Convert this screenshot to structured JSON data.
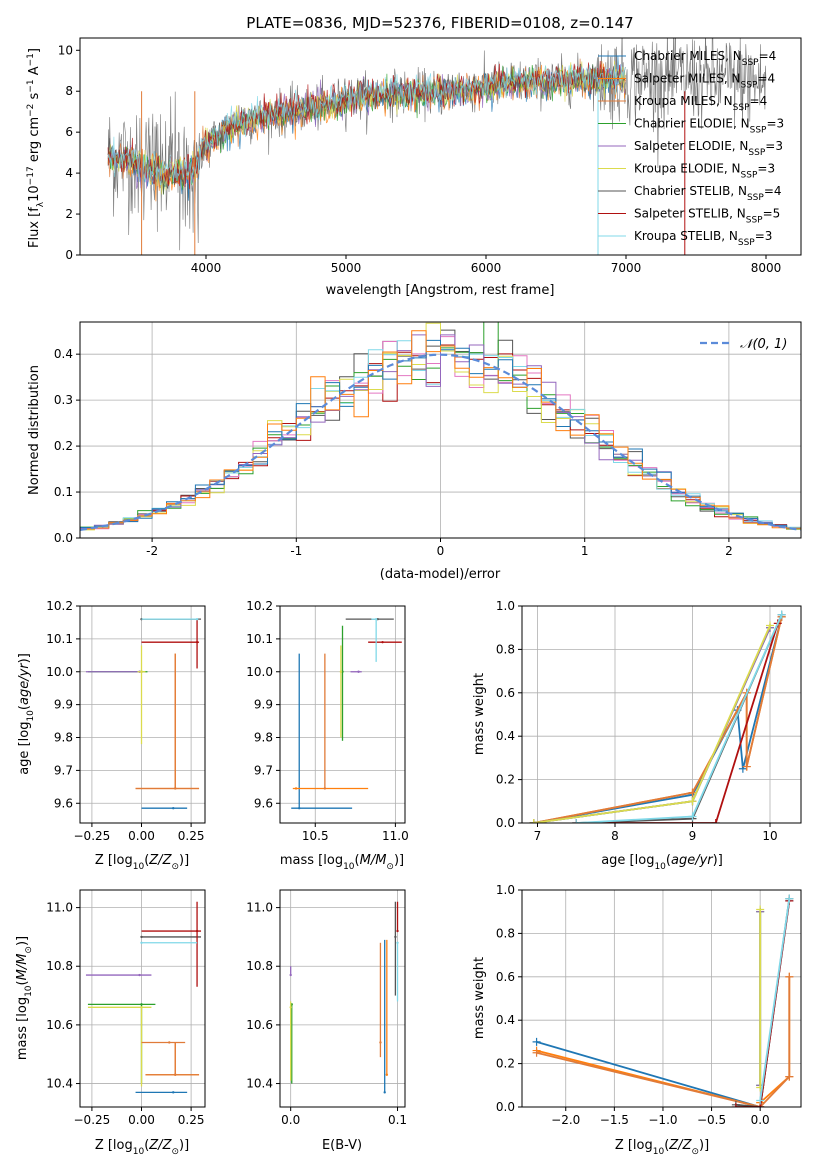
{
  "figure": {
    "title": "PLATE=0836, MJD=52376, FIBERID=0108, z=0.147"
  },
  "colors": {
    "Chabrier MILES": "#1f77b4",
    "Salpeter MILES": "#ff7f0e",
    "Kroupa MILES": "#e07b39",
    "Chabrier ELODIE": "#2ca02c",
    "Salpeter ELODIE": "#9467bd",
    "Kroupa ELODIE": "#dbdb4d",
    "Chabrier STELIB": "#555555",
    "Salpeter STELIB": "#b01010",
    "Kroupa STELIB": "#80d8e8"
  },
  "chart_data": [
    {
      "type": "line",
      "title": "PLATE=0836, MJD=52376, FIBERID=0108, z=0.147",
      "xlabel": "wavelength [Angstrom, rest frame]",
      "ylabel": "Flux [f_λ10^-17 erg cm^-2 s^-1 A^-1]",
      "xlim": [
        3100,
        8250
      ],
      "ylim": [
        0,
        10.6
      ],
      "xticks": [
        4000,
        5000,
        6000,
        7000,
        8000
      ],
      "yticks": [
        0,
        2,
        4,
        6,
        8,
        10
      ],
      "legend": [
        "Chabrier MILES, N_SSP=4",
        "Salpeter MILES, N_SSP=4",
        "Kroupa MILES, N_SSP=4",
        "Chabrier ELODIE, N_SSP=3",
        "Salpeter ELODIE, N_SSP=3",
        "Kroupa ELODIE, N_SSP=3",
        "Chabrier STELIB, N_SSP=4",
        "Salpeter STELIB, N_SSP=5",
        "Kroupa STELIB, N_SSP=3"
      ],
      "legend_position": "top-right",
      "data_continuum": {
        "x": [
          3300,
          3500,
          3700,
          3900,
          4000,
          4200,
          4500,
          4800,
          5000,
          5300,
          5600,
          5900,
          6200,
          6500,
          6800,
          7000,
          7300,
          7600,
          7900,
          8000
        ],
        "y": [
          4.8,
          4.6,
          4.2,
          4.4,
          5.4,
          6.4,
          6.9,
          7.2,
          7.6,
          7.9,
          7.9,
          8.1,
          8.4,
          8.5,
          8.6,
          8.6,
          8.7,
          8.6,
          8.5,
          8.3
        ]
      },
      "model_range": [
        3300,
        7000
      ]
    },
    {
      "type": "line",
      "xlabel": "(data-model)/error",
      "ylabel": "Normed distribution",
      "xlim": [
        -2.5,
        2.5
      ],
      "ylim": [
        0,
        0.47
      ],
      "xticks": [
        -2,
        -1,
        0,
        1,
        2
      ],
      "yticks": [
        0.0,
        0.1,
        0.2,
        0.3,
        0.4
      ],
      "grid": true,
      "legend": [
        "𝒩(0, 1)"
      ],
      "legend_position": "top-right",
      "bin_width": 0.1
    },
    {
      "type": "scatter",
      "xlabel": "Z [log10(Z/Z⊙)]",
      "ylabel": "age  [log10(age/yr)]",
      "xlim": [
        -0.31,
        0.32
      ],
      "ylim": [
        9.54,
        10.2
      ],
      "xticks": [
        -0.25,
        0.0,
        0.25
      ],
      "xticklabels": [
        "−0.25",
        "0.00",
        "0.25"
      ],
      "yticks": [
        9.6,
        9.7,
        9.8,
        9.9,
        10.0,
        10.1,
        10.2
      ],
      "grid": true,
      "points": [
        {
          "model": "Chabrier MILES",
          "x": 0.16,
          "xerr": [
            0.16,
            0.07
          ],
          "y": 9.585,
          "yerr": [
            0.0,
            0.0
          ]
        },
        {
          "model": "Salpeter MILES",
          "x": 0.17,
          "xerr": [
            0.2,
            0.12
          ],
          "y": 9.645,
          "yerr": [
            0.0,
            0.41
          ]
        },
        {
          "model": "Kroupa MILES",
          "x": 0.17,
          "xerr": [
            0.2,
            0.12
          ],
          "y": 9.645,
          "yerr": [
            0.0,
            0.41
          ]
        },
        {
          "model": "Chabrier ELODIE",
          "x": 0.0,
          "xerr": [
            0.27,
            0.03
          ],
          "y": 10.0,
          "yerr": [
            0.0,
            0.0
          ]
        },
        {
          "model": "Salpeter ELODIE",
          "x": -0.01,
          "xerr": [
            0.27,
            0.0
          ],
          "y": 10.0,
          "yerr": [
            0.0,
            0.0
          ]
        },
        {
          "model": "Kroupa ELODIE",
          "x": 0.0,
          "xerr": [
            0.02,
            0.02
          ],
          "y": 10.0,
          "yerr": [
            0.22,
            0.08
          ]
        },
        {
          "model": "Chabrier STELIB",
          "x": 0.0,
          "xerr": [
            0.0,
            0.3
          ],
          "y": 10.16,
          "yerr": [
            0.0,
            0.0
          ]
        },
        {
          "model": "Salpeter STELIB",
          "x": 0.28,
          "xerr": [
            0.28,
            0.01
          ],
          "y": 10.09,
          "yerr": [
            0.08,
            0.07
          ]
        },
        {
          "model": "Kroupa STELIB",
          "x": 0.28,
          "xerr": [
            0.28,
            0.0
          ],
          "y": 10.16,
          "yerr": [
            0.0,
            0.0
          ]
        }
      ]
    },
    {
      "type": "scatter",
      "xlabel": "mass [log10(M/M⊙)]",
      "xlim": [
        10.28,
        11.06
      ],
      "ylim": [
        9.54,
        10.2
      ],
      "xticks": [
        10.5,
        11.0
      ],
      "xticklabels": [
        "10.5",
        "11.0"
      ],
      "yticks": [
        9.6,
        9.7,
        9.8,
        9.9,
        10.0,
        10.1,
        10.2
      ],
      "grid": true,
      "points": [
        {
          "model": "Chabrier MILES",
          "x": 10.4,
          "xerr": [
            0.05,
            0.33
          ],
          "y": 9.585,
          "yerr": [
            0.0,
            0.47
          ]
        },
        {
          "model": "Salpeter MILES",
          "x": 10.38,
          "xerr": [
            0.02,
            0.45
          ],
          "y": 9.645,
          "yerr": [
            0.0,
            0.0
          ]
        },
        {
          "model": "Kroupa MILES",
          "x": 10.56,
          "xerr": [
            0.0,
            0.0
          ],
          "y": 9.645,
          "yerr": [
            0.0,
            0.41
          ]
        },
        {
          "model": "Chabrier ELODIE",
          "x": 10.67,
          "xerr": [
            0.0,
            0.0
          ],
          "y": 10.0,
          "yerr": [
            0.21,
            0.14
          ]
        },
        {
          "model": "Salpeter ELODIE",
          "x": 10.77,
          "xerr": [
            0.05,
            0.02
          ],
          "y": 10.0,
          "yerr": [
            0.0,
            0.0
          ]
        },
        {
          "model": "Kroupa ELODIE",
          "x": 10.66,
          "xerr": [
            0.0,
            0.0
          ],
          "y": 10.0,
          "yerr": [
            0.2,
            0.08
          ]
        },
        {
          "model": "Chabrier STELIB",
          "x": 10.89,
          "xerr": [
            0.2,
            0.1
          ],
          "y": 10.16,
          "yerr": [
            0.0,
            0.0
          ]
        },
        {
          "model": "Salpeter STELIB",
          "x": 10.92,
          "xerr": [
            0.09,
            0.12
          ],
          "y": 10.09,
          "yerr": [
            0.0,
            0.0
          ]
        },
        {
          "model": "Kroupa STELIB",
          "x": 10.88,
          "xerr": [
            0.03,
            0.0
          ],
          "y": 10.16,
          "yerr": [
            0.13,
            0.0
          ]
        }
      ]
    },
    {
      "type": "line",
      "xlabel": "age  [log10(age/yr)]",
      "ylabel": "mass weight",
      "xlim": [
        6.8,
        10.4
      ],
      "ylim": [
        0,
        1
      ],
      "xticks": [
        7,
        8,
        9,
        10
      ],
      "yticks": [
        0.0,
        0.2,
        0.4,
        0.6,
        0.8,
        1.0
      ],
      "grid": true,
      "series": [
        {
          "model": "Chabrier MILES",
          "x": [
            6.95,
            9.0,
            9.58,
            9.65,
            10.15
          ],
          "y": [
            0.0,
            0.13,
            0.52,
            0.25,
            0.95
          ]
        },
        {
          "model": "Salpeter MILES",
          "x": [
            6.95,
            9.0,
            9.7,
            9.7,
            10.15
          ],
          "y": [
            0.0,
            0.14,
            0.6,
            0.26,
            0.95
          ]
        },
        {
          "model": "Kroupa MILES",
          "x": [
            6.95,
            9.0,
            9.7,
            9.7,
            10.15
          ],
          "y": [
            0.0,
            0.14,
            0.6,
            0.26,
            0.95
          ]
        },
        {
          "model": "Chabrier ELODIE",
          "x": [
            6.95,
            9.0,
            10.0
          ],
          "y": [
            0.0,
            0.1,
            0.9
          ]
        },
        {
          "model": "Salpeter ELODIE",
          "x": [
            6.95,
            9.0,
            10.0
          ],
          "y": [
            0.0,
            0.1,
            0.9
          ]
        },
        {
          "model": "Kroupa ELODIE",
          "x": [
            6.95,
            9.0,
            10.0
          ],
          "y": [
            0.0,
            0.1,
            0.91
          ]
        },
        {
          "model": "Chabrier STELIB",
          "x": [
            7.5,
            9.0,
            10.15
          ],
          "y": [
            0.0,
            0.02,
            0.96
          ]
        },
        {
          "model": "Salpeter STELIB",
          "x": [
            7.5,
            9.3,
            10.1
          ],
          "y": [
            0.0,
            0.0,
            0.92
          ]
        },
        {
          "model": "Kroupa STELIB",
          "x": [
            7.5,
            9.0,
            10.15
          ],
          "y": [
            0.0,
            0.03,
            0.96
          ]
        }
      ]
    },
    {
      "type": "scatter",
      "xlabel": "Z [log10(Z/Z⊙)]",
      "ylabel": "mass [log10(M/M⊙)]",
      "xlim": [
        -0.31,
        0.32
      ],
      "ylim": [
        10.32,
        11.06
      ],
      "xticks": [
        -0.25,
        0.0,
        0.25
      ],
      "xticklabels": [
        "−0.25",
        "0.00",
        "0.25"
      ],
      "yticks": [
        10.4,
        10.6,
        10.8,
        11.0
      ],
      "grid": true,
      "points": [
        {
          "model": "Chabrier MILES",
          "x": 0.16,
          "xerr": [
            0.19,
            0.07
          ],
          "y": 10.37,
          "yerr": [
            0.0,
            0.0
          ]
        },
        {
          "model": "Salpeter MILES",
          "x": 0.17,
          "xerr": [
            0.15,
            0.12
          ],
          "y": 10.43,
          "yerr": [
            0.0,
            0.11
          ]
        },
        {
          "model": "Kroupa MILES",
          "x": 0.17,
          "xerr": [
            0.15,
            0.12
          ],
          "y": 10.43,
          "yerr": [
            0.0,
            0.11
          ]
        },
        {
          "model": "Chabrier ELODIE",
          "x": 0.0,
          "xerr": [
            0.27,
            0.07
          ],
          "y": 10.67,
          "yerr": [
            0.27,
            0.0
          ]
        },
        {
          "model": "Salpeter ELODIE",
          "x": -0.01,
          "xerr": [
            0.27,
            0.06
          ],
          "y": 10.77,
          "yerr": [
            0.0,
            0.0
          ]
        },
        {
          "model": "Kroupa ELODIE",
          "x": 0.0,
          "xerr": [
            0.27,
            0.05
          ],
          "y": 10.66,
          "yerr": [
            0.27,
            0.0
          ]
        },
        {
          "model": "Chabrier STELIB",
          "x": 0.0,
          "xerr": [
            0.0,
            0.3
          ],
          "y": 10.9,
          "yerr": [
            0.0,
            0.0
          ]
        },
        {
          "model": "Salpeter STELIB",
          "x": 0.28,
          "xerr": [
            0.28,
            0.02
          ],
          "y": 10.92,
          "yerr": [
            0.19,
            0.1
          ]
        },
        {
          "model": "Kroupa STELIB",
          "x": 0.0,
          "xerr": [
            0.0,
            0.28
          ],
          "y": 10.88,
          "yerr": [
            0.0,
            0.0
          ]
        },
        {
          "model": "Kroupa MILES",
          "x": 0.14,
          "xerr": [
            0.14,
            0.08
          ],
          "y": 10.54,
          "yerr": [
            0.0,
            0.0
          ]
        }
      ]
    },
    {
      "type": "scatter",
      "xlabel": "E(B-V)",
      "xlim": [
        -0.01,
        0.107
      ],
      "ylim": [
        10.32,
        11.06
      ],
      "xticks": [
        0.0,
        0.1
      ],
      "xticklabels": [
        "0.0",
        "0.1"
      ],
      "yticks": [
        10.4,
        10.6,
        10.8,
        11.0
      ],
      "grid": true,
      "points": [
        {
          "model": "Chabrier MILES",
          "x": 0.088,
          "y": 10.37,
          "yerr": [
            0.0,
            0.52
          ]
        },
        {
          "model": "Salpeter MILES",
          "x": 0.09,
          "y": 10.43,
          "yerr": [
            0.0,
            0.46
          ]
        },
        {
          "model": "Kroupa MILES",
          "x": 0.084,
          "y": 10.54,
          "yerr": [
            0.05,
            0.34
          ]
        },
        {
          "model": "Chabrier ELODIE",
          "x": 0.001,
          "y": 10.67,
          "yerr": [
            0.27,
            0.0
          ]
        },
        {
          "model": "Salpeter ELODIE",
          "x": 0.0,
          "y": 10.77,
          "yerr": [
            0.0,
            0.03
          ]
        },
        {
          "model": "Kroupa ELODIE",
          "x": 0.0,
          "y": 10.66,
          "yerr": [
            0.25,
            0.02
          ]
        },
        {
          "model": "Chabrier STELIB",
          "x": 0.098,
          "y": 10.9,
          "yerr": [
            0.2,
            0.12
          ]
        },
        {
          "model": "Salpeter STELIB",
          "x": 0.1,
          "y": 10.92,
          "yerr": [
            0.0,
            0.1
          ]
        },
        {
          "model": "Kroupa STELIB",
          "x": 0.1,
          "y": 10.88,
          "yerr": [
            0.2,
            0.0
          ]
        }
      ]
    },
    {
      "type": "line",
      "xlabel": "Z [log10(Z/Z⊙)]",
      "ylabel": "mass weight",
      "xlim": [
        -2.45,
        0.42
      ],
      "ylim": [
        0,
        1
      ],
      "xticks": [
        -2.0,
        -1.5,
        -1.0,
        -0.5,
        0.0
      ],
      "xticklabels": [
        "−2.0",
        "−1.5",
        "−1.0",
        "−0.5",
        "0.0"
      ],
      "yticks": [
        0.0,
        0.2,
        0.4,
        0.6,
        0.8,
        1.0
      ],
      "grid": true,
      "series": [
        {
          "model": "Chabrier MILES",
          "x": [
            -2.3,
            0.0,
            0.3
          ],
          "y": [
            0.3,
            0.0,
            0.95
          ]
        },
        {
          "model": "Salpeter MILES",
          "x": [
            -2.3,
            0.0,
            0.0,
            0.3,
            0.3
          ],
          "y": [
            0.26,
            0.0,
            0.02,
            0.14,
            0.6
          ]
        },
        {
          "model": "Kroupa MILES",
          "x": [
            -2.3,
            0.0,
            0.3,
            0.3
          ],
          "y": [
            0.25,
            0.0,
            0.14,
            0.6
          ]
        },
        {
          "model": "Chabrier ELODIE",
          "x": [
            0.0,
            0.0
          ],
          "y": [
            0.1,
            0.9
          ]
        },
        {
          "model": "Salpeter ELODIE",
          "x": [
            0.0,
            0.0
          ],
          "y": [
            0.1,
            0.9
          ]
        },
        {
          "model": "Kroupa ELODIE",
          "x": [
            0.0,
            0.0
          ],
          "y": [
            0.09,
            0.91
          ]
        },
        {
          "model": "Chabrier STELIB",
          "x": [
            -0.25,
            0.0,
            0.3
          ],
          "y": [
            0.01,
            0.0,
            0.96
          ]
        },
        {
          "model": "Salpeter STELIB",
          "x": [
            -0.25,
            0.0,
            0.3
          ],
          "y": [
            0.0,
            0.0,
            0.95
          ]
        },
        {
          "model": "Kroupa STELIB",
          "x": [
            0.0,
            0.3
          ],
          "y": [
            0.03,
            0.96
          ]
        }
      ]
    }
  ]
}
